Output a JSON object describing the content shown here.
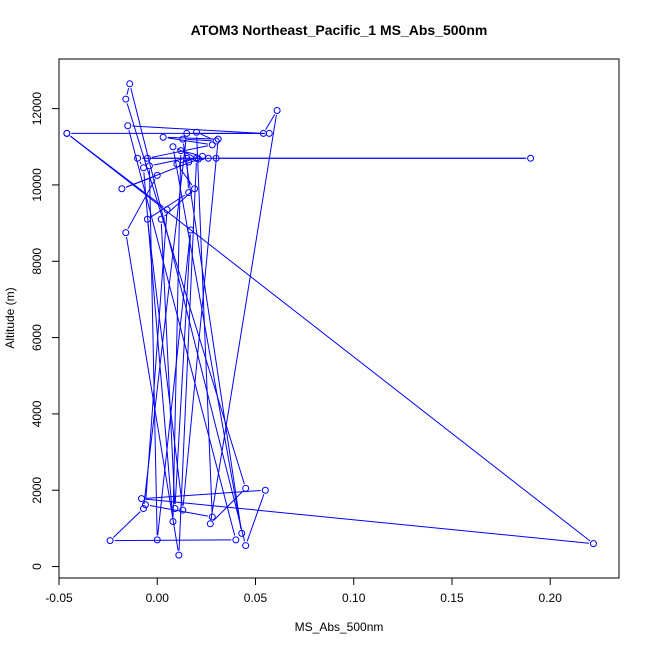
{
  "chart_data": {
    "type": "line",
    "title": "ATOM3 Northeast_Pacific_1 MS_Abs_500nm",
    "xlabel": "MS_Abs_500nm",
    "ylabel": "Altitude (m)",
    "xlim": [
      -0.05,
      0.235
    ],
    "ylim": [
      -300,
      13300
    ],
    "x_ticks": [
      {
        "value": -0.05,
        "label": "-0.05"
      },
      {
        "value": 0.0,
        "label": "0.00"
      },
      {
        "value": 0.05,
        "label": "0.05"
      },
      {
        "value": 0.1,
        "label": "0.10"
      },
      {
        "value": 0.15,
        "label": "0.15"
      },
      {
        "value": 0.2,
        "label": "0.20"
      }
    ],
    "y_ticks": [
      {
        "value": 0,
        "label": "0"
      },
      {
        "value": 2000,
        "label": "2000"
      },
      {
        "value": 4000,
        "label": "4000"
      },
      {
        "value": 6000,
        "label": "6000"
      },
      {
        "value": 8000,
        "label": "8000"
      },
      {
        "value": 10000,
        "label": "10000"
      },
      {
        "value": 12000,
        "label": "12000"
      }
    ],
    "series_color": "#0000ff",
    "marker": "open-circle",
    "series": [
      {
        "points": [
          [
            -0.046,
            11350
          ],
          [
            0.222,
            600
          ],
          [
            -0.008,
            1780
          ],
          [
            0.055,
            2000
          ],
          [
            0.045,
            550
          ],
          [
            -0.014,
            12650
          ],
          [
            -0.016,
            12250
          ],
          [
            0.045,
            2050
          ],
          [
            0.027,
            1120
          ],
          [
            0.061,
            11950
          ],
          [
            0.054,
            11350
          ],
          [
            -0.015,
            11550
          ],
          [
            0.04,
            700
          ],
          [
            -0.024,
            680
          ],
          [
            -0.007,
            1520
          ],
          [
            0.015,
            11350
          ],
          [
            0.057,
            11350
          ],
          [
            -0.046,
            11350
          ],
          [
            0.005,
            9350
          ],
          [
            -0.006,
            1620
          ],
          [
            0.028,
            1300
          ],
          [
            0.02,
            11380
          ],
          [
            0.03,
            11150
          ],
          [
            0.013,
            11200
          ],
          [
            0.043,
            870
          ],
          [
            0.008,
            11000
          ],
          [
            0.021,
            10680
          ],
          [
            -0.018,
            9900
          ],
          [
            0.0,
            10250
          ],
          [
            -0.016,
            8750
          ],
          [
            0.011,
            300
          ],
          [
            0.02,
            10700
          ],
          [
            -0.01,
            10700
          ],
          [
            -0.007,
            10450
          ],
          [
            0.008,
            1180
          ],
          [
            0.012,
            10900
          ],
          [
            0.023,
            10750
          ],
          [
            0.01,
            10550
          ],
          [
            0.019,
            9900
          ],
          [
            0.002,
            9100
          ],
          [
            0.009,
            1520
          ],
          [
            0.017,
            8820
          ],
          [
            0.0,
            700
          ],
          [
            -0.004,
            10500
          ],
          [
            0.015,
            10700
          ],
          [
            0.016,
            9800
          ],
          [
            -0.005,
            9100
          ],
          [
            0.013,
            1480
          ],
          [
            0.031,
            11200
          ],
          [
            0.003,
            11250
          ],
          [
            0.028,
            11050
          ],
          [
            -0.005,
            10700
          ],
          [
            0.19,
            10700
          ],
          [
            0.03,
            10700
          ],
          [
            0.026,
            10700
          ],
          [
            0.016,
            10600
          ]
        ]
      }
    ]
  }
}
